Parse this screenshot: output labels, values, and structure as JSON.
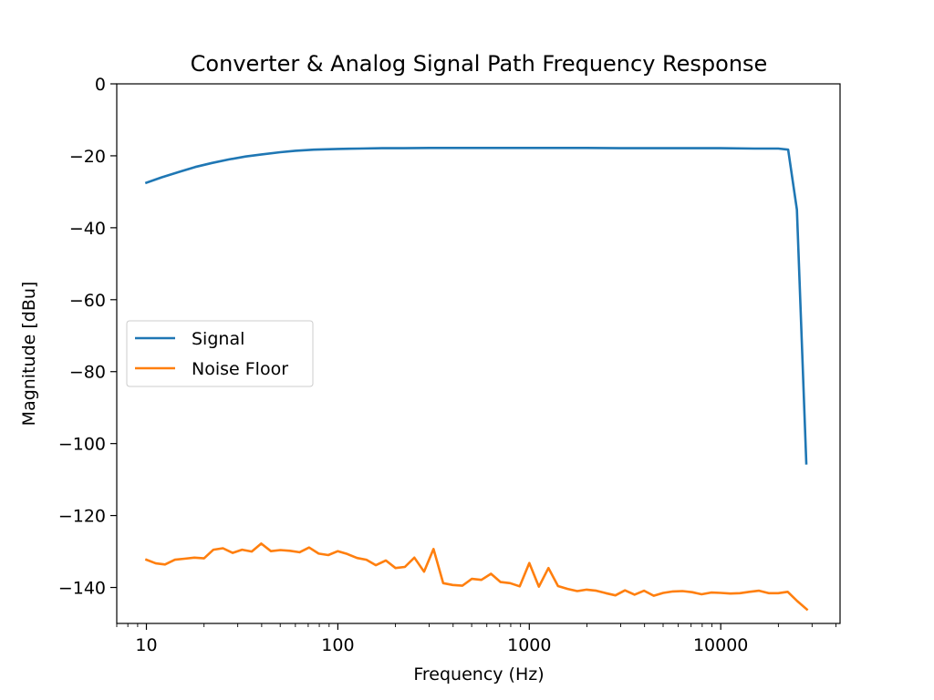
{
  "chart_data": {
    "type": "line",
    "title": "Converter & Analog Signal Path Frequency Response",
    "xlabel": "Frequency (Hz)",
    "ylabel": "Magnitude [dBu]",
    "xscale": "log",
    "xlim": [
      7.0,
      42000
    ],
    "ylim": [
      -150,
      0
    ],
    "xticks": [
      10,
      100,
      1000,
      10000
    ],
    "xtick_labels": [
      "10",
      "100",
      "1000",
      "10000"
    ],
    "yticks": [
      0,
      -20,
      -40,
      -60,
      -80,
      -100,
      -120,
      -140
    ],
    "ytick_labels": [
      "0",
      "−20",
      "−40",
      "−60",
      "−80",
      "−100",
      "−120",
      "−140"
    ],
    "grid": false,
    "legend_position": "center-left",
    "series": [
      {
        "name": "Signal",
        "color": "#1f77b4",
        "x": [
          10,
          12,
          15,
          18,
          22,
          27,
          33,
          40,
          50,
          60,
          75,
          100,
          130,
          170,
          220,
          300,
          400,
          500,
          700,
          1000,
          1500,
          2000,
          3000,
          5000,
          7000,
          10000,
          15000,
          20000,
          22500,
          25000,
          28000
        ],
        "y": [
          -27.5,
          -26.0,
          -24.4,
          -23.1,
          -22.0,
          -21.0,
          -20.2,
          -19.6,
          -19.0,
          -18.6,
          -18.3,
          -18.1,
          -18.0,
          -17.9,
          -17.9,
          -17.8,
          -17.8,
          -17.8,
          -17.8,
          -17.8,
          -17.8,
          -17.8,
          -17.9,
          -17.9,
          -17.9,
          -17.9,
          -18.0,
          -18.0,
          -18.3,
          -35.0,
          -105.5
        ]
      },
      {
        "name": "Noise Floor",
        "color": "#ff7f0e",
        "x": [
          10,
          11.2,
          12.5,
          14.1,
          15.8,
          17.8,
          20,
          22.4,
          25.1,
          28.2,
          31.6,
          35.5,
          39.8,
          44.7,
          50.1,
          56.2,
          63.1,
          70.8,
          79.4,
          89.1,
          100,
          112,
          126,
          141,
          158,
          178,
          200,
          224,
          251,
          282,
          316,
          355,
          398,
          447,
          501,
          562,
          631,
          708,
          794,
          891,
          1000,
          1122,
          1259,
          1413,
          1585,
          1778,
          1995,
          2239,
          2512,
          2818,
          3162,
          3548,
          3981,
          4467,
          5012,
          5623,
          6310,
          7079,
          7943,
          8913,
          10000,
          11220,
          12589,
          14125,
          15849,
          17783,
          19953,
          22387,
          25119,
          28184
        ],
        "y": [
          -132.3,
          -133.3,
          -133.6,
          -132.3,
          -132.0,
          -131.7,
          -131.9,
          -129.5,
          -129.1,
          -130.4,
          -129.5,
          -130.0,
          -127.8,
          -129.9,
          -129.6,
          -129.8,
          -130.2,
          -128.9,
          -130.6,
          -131.0,
          -129.9,
          -130.7,
          -131.8,
          -132.3,
          -133.8,
          -132.5,
          -134.6,
          -134.3,
          -131.7,
          -135.6,
          -129.3,
          -138.8,
          -139.3,
          -139.5,
          -137.6,
          -137.9,
          -136.2,
          -138.5,
          -138.8,
          -139.7,
          -133.2,
          -139.8,
          -134.6,
          -139.6,
          -140.4,
          -141.0,
          -140.6,
          -140.9,
          -141.6,
          -142.2,
          -140.8,
          -142.0,
          -140.9,
          -142.3,
          -141.5,
          -141.1,
          -141.0,
          -141.3,
          -141.9,
          -141.4,
          -141.5,
          -141.7,
          -141.6,
          -141.2,
          -140.9,
          -141.6,
          -141.6,
          -141.2,
          -143.8,
          -146.1
        ]
      }
    ]
  }
}
